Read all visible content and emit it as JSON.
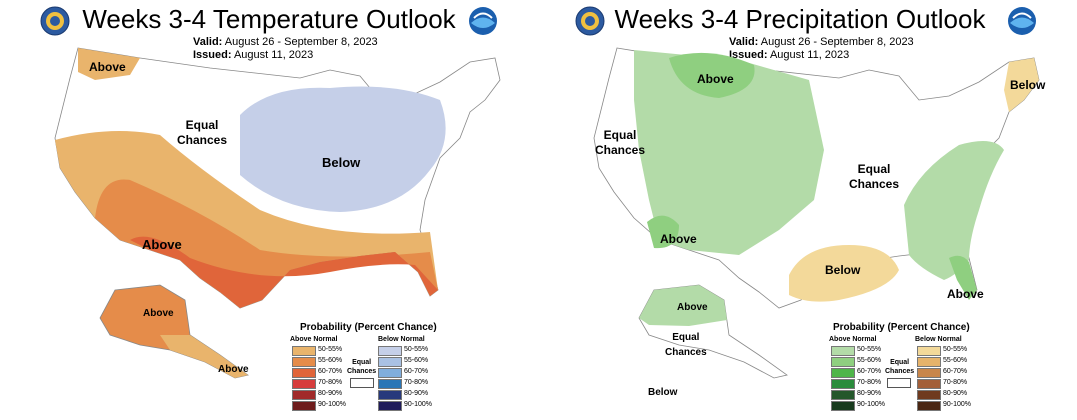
{
  "temp": {
    "title": "Weeks 3-4 Temperature Outlook",
    "valid_label": "Valid:",
    "valid": "August 26 - September 8, 2023",
    "issued_label": "Issued:",
    "issued": "August 11, 2023",
    "labels": {
      "above_nw": "Above",
      "equal": "Equal\nChances",
      "below": "Below",
      "above_sw": "Above",
      "above_ak": "Above",
      "above_ak2": "Above"
    },
    "legend": {
      "title": "Probability (Percent Chance)",
      "above_head": "Above Normal",
      "below_head": "Below Normal",
      "equal": "Equal\nChances",
      "ranges": [
        "50-55%",
        "55-60%",
        "60-70%",
        "70-80%",
        "80-90%",
        "90-100%"
      ],
      "above_colors": [
        "#e9b46c",
        "#e58c4a",
        "#e0653a",
        "#d63c3c",
        "#a12a2a",
        "#6e1c1c"
      ],
      "below_colors": [
        "#c5cfe8",
        "#a9c1e3",
        "#80aedd",
        "#2a76b6",
        "#27397c",
        "#1f1b5a"
      ]
    }
  },
  "precip": {
    "title": "Weeks 3-4 Precipitation Outlook",
    "valid_label": "Valid:",
    "valid": "August 26 - September 8, 2023",
    "issued_label": "Issued:",
    "issued": "August 11, 2023",
    "labels": {
      "equal_w": "Equal\nChances",
      "above_n": "Above",
      "above_ne": "Below",
      "equal_c": "Equal\nChances",
      "above_sw": "Above",
      "below_s": "Below",
      "above_se": "Above",
      "above_ak": "Above",
      "equal_ak": "Equal\nChances",
      "below_ak": "Below"
    },
    "legend": {
      "title": "Probability (Percent Chance)",
      "above_head": "Above Normal",
      "below_head": "Below Normal",
      "equal": "Equal\nChances",
      "ranges": [
        "50-55%",
        "55-60%",
        "60-70%",
        "70-80%",
        "80-90%",
        "90-100%"
      ],
      "above_colors": [
        "#b3dba8",
        "#8fcf80",
        "#4fb54a",
        "#2a8c3c",
        "#24572b",
        "#173a1d"
      ],
      "below_colors": [
        "#f3d99a",
        "#e6b36b",
        "#c9864a",
        "#a35f38",
        "#6f3a1f",
        "#4a2612"
      ]
    }
  }
}
